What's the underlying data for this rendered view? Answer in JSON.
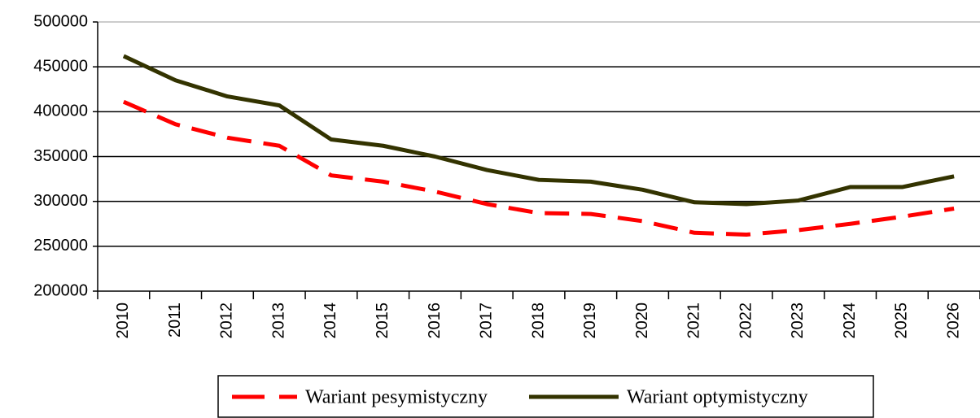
{
  "chart_data": {
    "type": "line",
    "categories": [
      "2010",
      "2011",
      "2012",
      "2013",
      "2014",
      "2015",
      "2016",
      "2017",
      "2018",
      "2019",
      "2020",
      "2021",
      "2022",
      "2023",
      "2024",
      "2025",
      "2026"
    ],
    "series": [
      {
        "name": "Wariant pesymistyczny",
        "color": "#ff0000",
        "dashed": true,
        "values": [
          411000,
          386000,
          371000,
          362000,
          329000,
          322000,
          311000,
          297000,
          287000,
          286000,
          278000,
          265000,
          263000,
          268000,
          275000,
          283000,
          292000
        ]
      },
      {
        "name": "Wariant optymistyczny",
        "color": "#333300",
        "dashed": false,
        "values": [
          462000,
          435000,
          417000,
          407000,
          369000,
          362000,
          350000,
          335000,
          324000,
          322000,
          313000,
          299000,
          297000,
          301000,
          316000,
          316000,
          328000
        ]
      }
    ],
    "ylim": [
      200000,
      500000
    ],
    "yticks": [
      200000,
      250000,
      300000,
      350000,
      400000,
      450000,
      500000
    ],
    "grid": true,
    "legend": "bottom"
  }
}
